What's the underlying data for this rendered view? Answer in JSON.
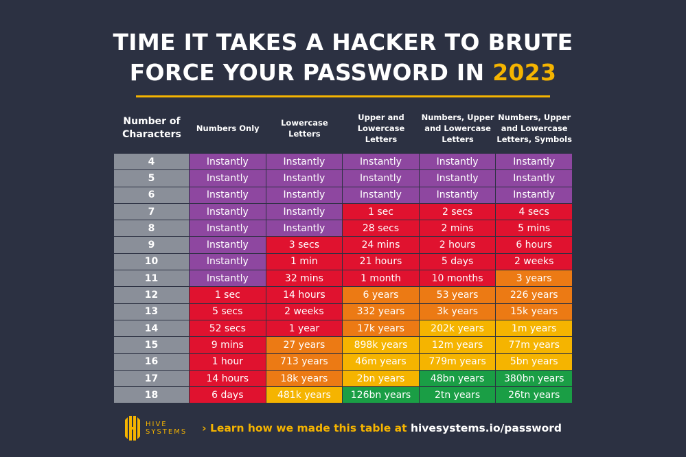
{
  "title": {
    "line1": "TIME IT TAKES A HACKER TO BRUTE",
    "line2": "FORCE YOUR PASSWORD IN ",
    "year": "2023"
  },
  "colors": {
    "p": "#8e47a0",
    "r": "#e0122f",
    "o": "#ec7a14",
    "y": "#f5b400",
    "g": "#1a9e45",
    "background": "#2c3142"
  },
  "headers": [
    "Number of Characters",
    "Numbers Only",
    "Lowercase Letters",
    "Upper and Lowercase Letters",
    "Numbers, Upper and Lowercase Letters",
    "Numbers, Upper and Lowercase Letters, Symbols"
  ],
  "rows": [
    {
      "chars": "4",
      "values": [
        "Instantly",
        "Instantly",
        "Instantly",
        "Instantly",
        "Instantly"
      ],
      "levels": [
        "p",
        "p",
        "p",
        "p",
        "p"
      ]
    },
    {
      "chars": "5",
      "values": [
        "Instantly",
        "Instantly",
        "Instantly",
        "Instantly",
        "Instantly"
      ],
      "levels": [
        "p",
        "p",
        "p",
        "p",
        "p"
      ]
    },
    {
      "chars": "6",
      "values": [
        "Instantly",
        "Instantly",
        "Instantly",
        "Instantly",
        "Instantly"
      ],
      "levels": [
        "p",
        "p",
        "p",
        "p",
        "p"
      ]
    },
    {
      "chars": "7",
      "values": [
        "Instantly",
        "Instantly",
        "1 sec",
        "2 secs",
        "4 secs"
      ],
      "levels": [
        "p",
        "p",
        "r",
        "r",
        "r"
      ]
    },
    {
      "chars": "8",
      "values": [
        "Instantly",
        "Instantly",
        "28 secs",
        "2 mins",
        "5 mins"
      ],
      "levels": [
        "p",
        "p",
        "r",
        "r",
        "r"
      ]
    },
    {
      "chars": "9",
      "values": [
        "Instantly",
        "3 secs",
        "24 mins",
        "2 hours",
        "6 hours"
      ],
      "levels": [
        "p",
        "r",
        "r",
        "r",
        "r"
      ]
    },
    {
      "chars": "10",
      "values": [
        "Instantly",
        "1 min",
        "21 hours",
        "5 days",
        "2 weeks"
      ],
      "levels": [
        "p",
        "r",
        "r",
        "r",
        "r"
      ]
    },
    {
      "chars": "11",
      "values": [
        "Instantly",
        "32 mins",
        "1 month",
        "10 months",
        "3 years"
      ],
      "levels": [
        "p",
        "r",
        "r",
        "r",
        "o"
      ]
    },
    {
      "chars": "12",
      "values": [
        "1 sec",
        "14 hours",
        "6 years",
        "53 years",
        "226 years"
      ],
      "levels": [
        "r",
        "r",
        "o",
        "o",
        "o"
      ]
    },
    {
      "chars": "13",
      "values": [
        "5 secs",
        "2 weeks",
        "332 years",
        "3k years",
        "15k years"
      ],
      "levels": [
        "r",
        "r",
        "o",
        "o",
        "o"
      ]
    },
    {
      "chars": "14",
      "values": [
        "52 secs",
        "1 year",
        "17k years",
        "202k years",
        "1m years"
      ],
      "levels": [
        "r",
        "r",
        "o",
        "y",
        "y"
      ]
    },
    {
      "chars": "15",
      "values": [
        "9 mins",
        "27 years",
        "898k years",
        "12m years",
        "77m years"
      ],
      "levels": [
        "r",
        "o",
        "y",
        "y",
        "y"
      ]
    },
    {
      "chars": "16",
      "values": [
        "1 hour",
        "713 years",
        "46m years",
        "779m years",
        "5bn years"
      ],
      "levels": [
        "r",
        "o",
        "y",
        "y",
        "y"
      ]
    },
    {
      "chars": "17",
      "values": [
        "14 hours",
        "18k years",
        "2bn years",
        "48bn years",
        "380bn years"
      ],
      "levels": [
        "r",
        "o",
        "y",
        "g",
        "g"
      ]
    },
    {
      "chars": "18",
      "values": [
        "6 days",
        "481k years",
        "126bn years",
        "2tn years",
        "26tn years"
      ],
      "levels": [
        "r",
        "y",
        "g",
        "g",
        "g"
      ]
    }
  ],
  "footer": {
    "logo_line1": "HIVE",
    "logo_line2": "SYSTEMS",
    "chevron": "›",
    "learn_text": "Learn how we made this table at ",
    "url": "hivesystems.io/password"
  }
}
